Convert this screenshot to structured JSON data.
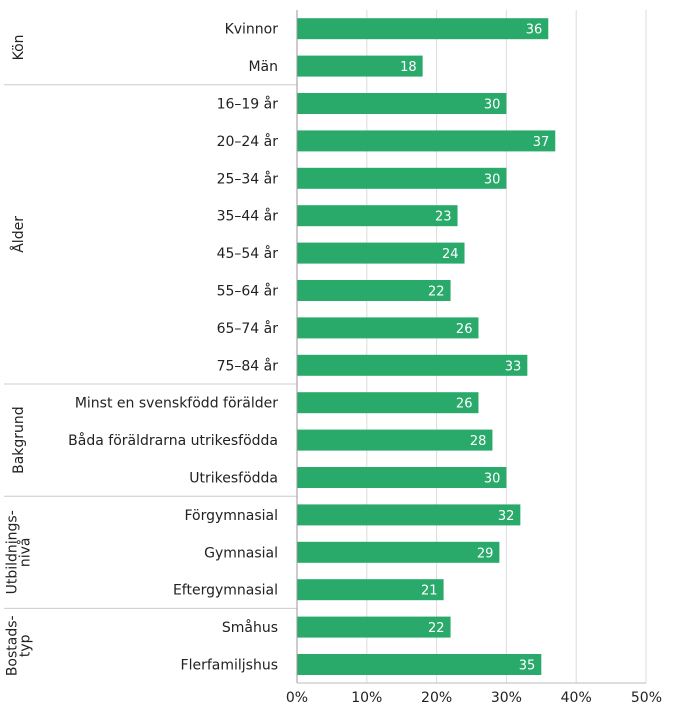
{
  "chart_data": {
    "type": "bar",
    "orientation": "horizontal",
    "bar_color": "#2aaa6a",
    "value_label_color": "#ffffff",
    "grid_color": "#dcdcdc",
    "xlim": [
      0,
      50
    ],
    "x_ticks": [
      {
        "value": 0,
        "label": "0%"
      },
      {
        "value": 10,
        "label": "10%"
      },
      {
        "value": 20,
        "label": "20%"
      },
      {
        "value": 30,
        "label": "30%"
      },
      {
        "value": 40,
        "label": "40%"
      },
      {
        "value": 50,
        "label": "50%"
      }
    ],
    "groups": [
      {
        "name": "Kön",
        "name_lines": [
          "Kön"
        ],
        "categories": [
          {
            "label": "Kvinnor",
            "value": 36
          },
          {
            "label": "Män",
            "value": 18
          }
        ]
      },
      {
        "name": "Ålder",
        "name_lines": [
          "Ålder"
        ],
        "categories": [
          {
            "label": "16–19 år",
            "value": 30
          },
          {
            "label": "20–24 år",
            "value": 37
          },
          {
            "label": "25–34 år",
            "value": 30
          },
          {
            "label": "35–44 år",
            "value": 23
          },
          {
            "label": "45–54 år",
            "value": 24
          },
          {
            "label": "55–64 år",
            "value": 22
          },
          {
            "label": "65–74 år",
            "value": 26
          },
          {
            "label": "75–84 år",
            "value": 33
          }
        ]
      },
      {
        "name": "Bakgrund",
        "name_lines": [
          "Bakgrund"
        ],
        "categories": [
          {
            "label": "Minst en svenskfödd förälder",
            "value": 26
          },
          {
            "label": "Båda föräldrarna utrikesfödda",
            "value": 28
          },
          {
            "label": "Utrikesfödda",
            "value": 30
          }
        ]
      },
      {
        "name": "Utbildningsnivå",
        "name_lines": [
          "Utbildnings-",
          "nivå"
        ],
        "categories": [
          {
            "label": "Förgymnasial",
            "value": 32
          },
          {
            "label": "Gymnasial",
            "value": 29
          },
          {
            "label": "Eftergymnasial",
            "value": 21
          }
        ]
      },
      {
        "name": "Bostadstyp",
        "name_lines": [
          "Bostads-",
          "typ"
        ],
        "categories": [
          {
            "label": "Småhus",
            "value": 22
          },
          {
            "label": "Flerfamiljshus",
            "value": 35
          }
        ]
      }
    ]
  }
}
